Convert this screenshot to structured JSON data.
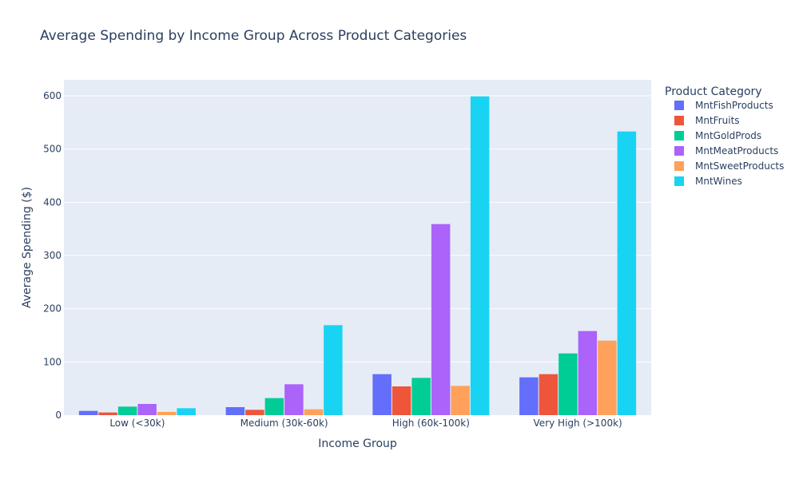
{
  "chart_data": {
    "type": "bar",
    "title": "Average Spending by Income Group Across Product Categories",
    "xlabel": "Income Group",
    "ylabel": "Average Spending ($)",
    "ylim": [
      0,
      630
    ],
    "yticks": [
      0,
      100,
      200,
      300,
      400,
      500,
      600
    ],
    "grid": true,
    "legend_title": "Product Category",
    "legend_position": "right",
    "categories": [
      "Low (<30k)",
      "Medium (30k-60k)",
      "High (60k-100k)",
      "Very High (>100k)"
    ],
    "series": [
      {
        "name": "MntFishProducts",
        "color": "#636efa",
        "values": [
          8,
          15,
          77,
          71
        ]
      },
      {
        "name": "MntFruits",
        "color": "#ef553b",
        "values": [
          5,
          10,
          54,
          77
        ]
      },
      {
        "name": "MntGoldProds",
        "color": "#00cc96",
        "values": [
          16,
          32,
          70,
          116
        ]
      },
      {
        "name": "MntMeatProducts",
        "color": "#ab63fa",
        "values": [
          21,
          58,
          359,
          158
        ]
      },
      {
        "name": "MntSweetProducts",
        "color": "#ffa15a",
        "values": [
          6,
          11,
          55,
          140
        ]
      },
      {
        "name": "MntWines",
        "color": "#19d3f3",
        "values": [
          13,
          169,
          599,
          533
        ]
      }
    ]
  }
}
